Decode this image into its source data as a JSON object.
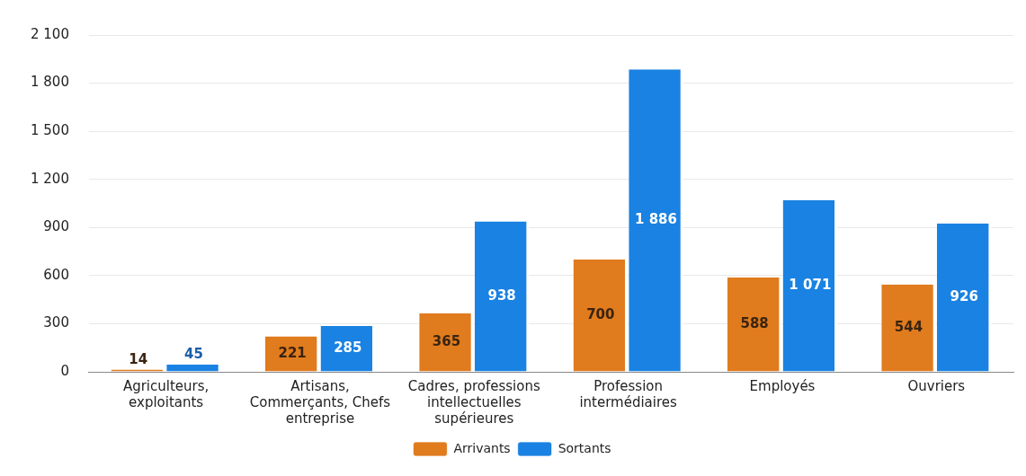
{
  "chart_data": {
    "type": "bar",
    "categories": [
      "Agriculteurs, exploitants",
      "Artisans, Commerçants, Chefs entreprise",
      "Cadres, professions intellectuelles supérieures",
      "Profession intermédiaires",
      "Employés",
      "Ouvriers"
    ],
    "series": [
      {
        "name": "Arrivants",
        "color": "#e07b1e",
        "values": [
          14,
          221,
          365,
          700,
          588,
          544
        ],
        "value_labels": [
          "14",
          "221",
          "365",
          "700",
          "588",
          "544"
        ]
      },
      {
        "name": "Sortants",
        "color": "#1a82e2",
        "values": [
          45,
          285,
          938,
          1886,
          1071,
          926
        ],
        "value_labels": [
          "45",
          "285",
          "938",
          "1 886",
          "1 071",
          "926"
        ]
      }
    ],
    "ylim": [
      0,
      2100
    ],
    "yticks": [
      0,
      300,
      600,
      900,
      {
        "value": 1200,
        "label": "1 200"
      },
      {
        "value": 1500,
        "label": "1 500"
      },
      {
        "value": 1800,
        "label": "1 800"
      },
      {
        "value": 2100,
        "label": "2 100"
      }
    ],
    "grid": "y",
    "legend": "bottom"
  }
}
